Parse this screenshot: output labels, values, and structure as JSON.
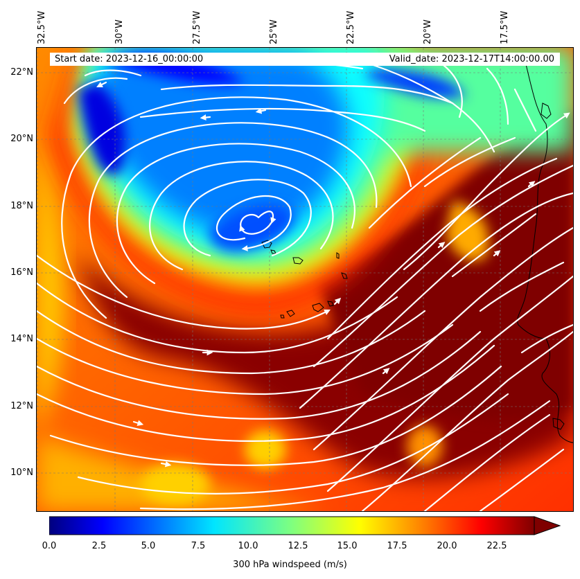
{
  "header": {
    "start_date": "Start date: 2023-12-16_00:00:00",
    "valid_date": "Valid_date: 2023-12-17T14:00:00.00"
  },
  "axes": {
    "longitudes": [
      "32.5°W",
      "30°W",
      "27.5°W",
      "25°W",
      "22.5°W",
      "20°W",
      "17.5°W"
    ],
    "latitudes": [
      "22°N",
      "20°N",
      "18°N",
      "16°N",
      "14°N",
      "12°N",
      "10°N"
    ]
  },
  "map_extent": {
    "lon_min": -32.6,
    "lon_max": -15.4,
    "lat_min": 8.9,
    "lat_max": 22.8
  },
  "field": {
    "variable": "300 hPa windspeed",
    "units": "m/s",
    "low_center_lon_lat": [
      -25.3,
      17.3
    ],
    "jet_core": "west-southwest to east-northeast band, 22.5+ m/s"
  },
  "colorbar": {
    "label": "300 hPa windspeed (m/s)",
    "ticks": [
      "0.0",
      "2.5",
      "5.0",
      "7.5",
      "10.0",
      "12.5",
      "15.0",
      "17.5",
      "20.0",
      "22.5"
    ],
    "min": 0,
    "max": 25,
    "extend": "max",
    "colormap": "jet",
    "colors": [
      "#00007f",
      "#0000ff",
      "#007fff",
      "#00ffff",
      "#7fff7f",
      "#ffff00",
      "#ff7f00",
      "#ff0000",
      "#7f0000"
    ]
  },
  "overlay": {
    "streamline_color": "#ffffff",
    "coastline_color": "#000000",
    "gridline_style": "dashed"
  }
}
